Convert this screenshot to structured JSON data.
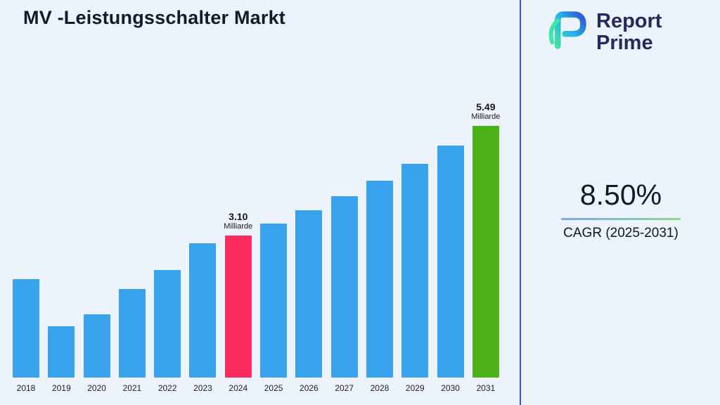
{
  "page": {
    "background": "#edf3fc",
    "divider_color": "#3a55d9"
  },
  "header": {
    "title": "MV -Leistungsschalter Markt"
  },
  "logo": {
    "line1": "Report",
    "line2": "Prime",
    "text_color": "#232b5e",
    "mark_colors": [
      "#43e0a0",
      "#2bb3e8",
      "#2e55d4"
    ]
  },
  "stats": {
    "cagr_value": "8.50%",
    "cagr_label": "CAGR (2025-2031)",
    "underline_gradient": [
      "#79a7f0",
      "#8fd98a"
    ]
  },
  "chart_data": {
    "type": "bar",
    "title": "MV -Leistungsschalter Markt",
    "categories": [
      "2018",
      "2019",
      "2020",
      "2021",
      "2022",
      "2023",
      "2024",
      "2025",
      "2026",
      "2027",
      "2028",
      "2029",
      "2030",
      "2031"
    ],
    "values": [
      2.15,
      1.12,
      1.38,
      1.94,
      2.35,
      2.93,
      3.1,
      3.36,
      3.65,
      3.96,
      4.3,
      4.66,
      5.06,
      5.49
    ],
    "unit": "Milliarde",
    "ylabel": "",
    "xlabel": "",
    "ylim": [
      0,
      5.8
    ],
    "grid": false,
    "legend": false,
    "bar_colors": {
      "default": "#38a2ec",
      "2024": "#fb2b5f",
      "2031": "#4db21a"
    },
    "annotations": [
      {
        "year": "2024",
        "value_label": "3.10",
        "unit_label": "Milliarde"
      },
      {
        "year": "2031",
        "value_label": "5.49",
        "unit_label": "Milliarde"
      }
    ]
  }
}
